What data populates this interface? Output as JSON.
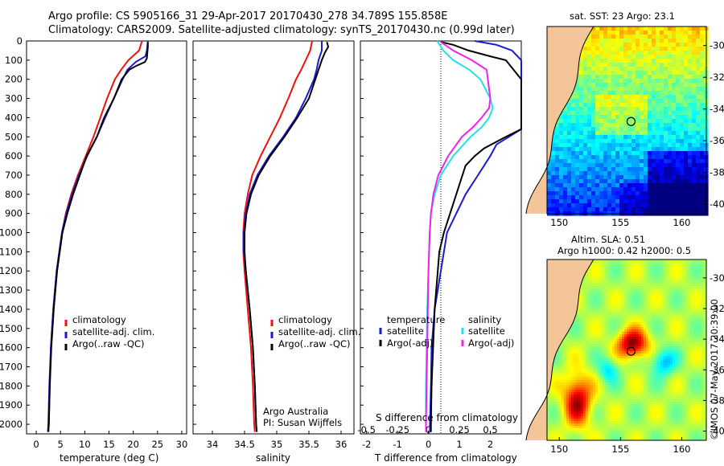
{
  "header": {
    "line1": "Argo profile: CS 5905166_31 29-Apr-2017 20170430_278 34.789S 155.858E",
    "line2": "Climatology: CARS2009. Satellite-adjusted climatology: synTS_20170430.nc (0.99d later)"
  },
  "colors": {
    "climatology": "#ee1111",
    "satellite": "#1a1ad0",
    "argo": "#000000",
    "sat_salinity": "#22e0e8",
    "argo_salinity": "#ee22ee",
    "land": "#f5c59a"
  },
  "chart_data": [
    {
      "type": "line",
      "name": "temperature",
      "xlabel": "temperature (deg C)",
      "ylabel": "",
      "xlim": [
        -2,
        31
      ],
      "ylim": [
        2050,
        0
      ],
      "xticks": [
        "0",
        "5",
        "10",
        "15",
        "20",
        "25",
        "30"
      ],
      "yticks": [
        "0",
        "100",
        "200",
        "300",
        "400",
        "500",
        "600",
        "700",
        "800",
        "900",
        "1000",
        "1100",
        "1200",
        "1300",
        "1400",
        "1500",
        "1600",
        "1700",
        "1800",
        "1900",
        "2000"
      ],
      "legend": [
        "climatology",
        "satellite-adj. clim.",
        "Argo(..raw -QC)"
      ],
      "series": [
        {
          "name": "climatology",
          "depth": [
            0,
            50,
            100,
            150,
            200,
            300,
            400,
            500,
            600,
            700,
            800,
            900,
            1000,
            1200,
            1400,
            1600,
            1800,
            2000,
            2040
          ],
          "values": [
            21.8,
            21.2,
            19,
            17.5,
            16.2,
            14.6,
            13.2,
            11.8,
            10.2,
            8.6,
            7.2,
            6.1,
            5.3,
            4.2,
            3.5,
            3.0,
            2.8,
            2.6,
            2.5
          ]
        },
        {
          "name": "satellite-adj. clim.",
          "depth": [
            0,
            50,
            80,
            110,
            150,
            200,
            300,
            400,
            500,
            600,
            700,
            800,
            900,
            1000,
            1200,
            1400,
            1600,
            1800,
            2000,
            2040
          ],
          "values": [
            23,
            22.8,
            22.5,
            20.5,
            18.8,
            17.8,
            16.0,
            14.2,
            12.5,
            10.5,
            8.8,
            7.4,
            6.2,
            5.3,
            4.2,
            3.5,
            3.0,
            2.7,
            2.5,
            2.4
          ]
        },
        {
          "name": "Argo(..raw -QC)",
          "depth": [
            5,
            30,
            60,
            90,
            110,
            130,
            150,
            200,
            250,
            300,
            400,
            500,
            600,
            700,
            800,
            900,
            1000,
            1200,
            1400,
            1600,
            1800,
            2000,
            2040
          ],
          "values": [
            23.0,
            23.0,
            22.9,
            22.8,
            22.4,
            20.6,
            19.2,
            17.6,
            16.8,
            16.0,
            14.0,
            12.5,
            10.4,
            9.0,
            7.6,
            6.4,
            5.4,
            4.3,
            3.6,
            3.1,
            2.8,
            2.6,
            2.5
          ]
        }
      ]
    },
    {
      "type": "line",
      "name": "salinity",
      "xlabel": "salinity",
      "xlim": [
        33.7,
        36.2
      ],
      "ylim": [
        2050,
        0
      ],
      "xticks": [
        "34",
        "34.5",
        "35",
        "35.5",
        "36"
      ],
      "legend": [
        "climatology",
        "satellite-adj. clim.",
        "Argo(..raw -QC)"
      ],
      "series": [
        {
          "name": "climatology",
          "depth": [
            0,
            50,
            100,
            150,
            200,
            300,
            400,
            500,
            600,
            700,
            800,
            900,
            1000,
            1100,
            1200,
            1400,
            1600,
            1800,
            2000,
            2040
          ],
          "values": [
            35.55,
            35.52,
            35.45,
            35.38,
            35.3,
            35.18,
            35.05,
            34.9,
            34.75,
            34.62,
            34.55,
            34.5,
            34.48,
            34.48,
            34.5,
            34.55,
            34.6,
            34.63,
            34.65,
            34.66
          ]
        },
        {
          "name": "satellite-adj. clim.",
          "depth": [
            0,
            50,
            100,
            150,
            200,
            300,
            400,
            500,
            600,
            700,
            800,
            900,
            1000,
            1100,
            1200,
            1400,
            1600,
            1800,
            2000,
            2040
          ],
          "values": [
            35.7,
            35.7,
            35.65,
            35.62,
            35.58,
            35.45,
            35.3,
            35.1,
            34.88,
            34.7,
            34.58,
            34.52,
            34.49,
            34.49,
            34.52,
            34.58,
            34.63,
            34.66,
            34.68,
            34.69
          ]
        },
        {
          "name": "Argo(..raw -QC)",
          "depth": [
            5,
            30,
            60,
            100,
            150,
            200,
            300,
            400,
            500,
            600,
            700,
            800,
            900,
            1000,
            1100,
            1200,
            1400,
            1600,
            1800,
            2000,
            2040
          ],
          "values": [
            35.78,
            35.8,
            35.75,
            35.7,
            35.65,
            35.6,
            35.5,
            35.32,
            35.12,
            34.9,
            34.72,
            34.6,
            34.53,
            34.5,
            34.5,
            34.52,
            34.58,
            34.63,
            34.66,
            34.68,
            34.69
          ]
        }
      ],
      "notes": [
        "Argo Australia",
        "PI: Susan Wijffels"
      ]
    },
    {
      "type": "line",
      "name": "difference from climatology",
      "xlabel": "T difference from climatology",
      "xlabel_top": "S difference from climatology",
      "xlim": [
        -2.2,
        3.0
      ],
      "ylim": [
        2050,
        0
      ],
      "xticks": [
        "-2",
        "-1",
        "0",
        "1",
        "2"
      ],
      "xticks_S": [
        "-0.5",
        "-0.25",
        "0",
        "0.25",
        "0.5"
      ],
      "legend_groups": [
        {
          "title": "temperature",
          "items": [
            "satellite",
            "Argo(-adj)"
          ]
        },
        {
          "title": "salinity",
          "items": [
            "satellite",
            "Argo(-adj)"
          ]
        }
      ],
      "series": [
        {
          "name": "T satellite",
          "depth": [
            0,
            20,
            50,
            100,
            200,
            300,
            400,
            460,
            500,
            540,
            600,
            700,
            800,
            900,
            1000,
            1200,
            1400,
            1600,
            1800,
            2000,
            2040
          ],
          "values": [
            1.5,
            2.2,
            2.7,
            3.0,
            3.0,
            3.0,
            3.0,
            3.0,
            2.6,
            2.2,
            2.0,
            1.6,
            1.2,
            0.9,
            0.6,
            0.4,
            0.2,
            0.1,
            0.08,
            0.05,
            0.05
          ]
        },
        {
          "name": "T Argo(-adj)",
          "depth": [
            5,
            20,
            50,
            80,
            100,
            200,
            300,
            400,
            460,
            500,
            560,
            600,
            650,
            700,
            800,
            900,
            1000,
            1100,
            1200,
            1400,
            1600,
            1800,
            2000,
            2040
          ],
          "values": [
            0.4,
            0.8,
            1.3,
            2.0,
            2.5,
            3.0,
            3.0,
            3.0,
            3.0,
            2.5,
            1.8,
            1.5,
            1.2,
            1.1,
            0.9,
            0.7,
            0.5,
            0.35,
            0.3,
            0.2,
            0.15,
            0.1,
            0.08,
            0.08
          ]
        },
        {
          "name": "S satellite",
          "depth": [
            0,
            50,
            100,
            150,
            200,
            300,
            350,
            400,
            450,
            500,
            600,
            700,
            800,
            900,
            1000,
            1200,
            1400,
            1600,
            1800,
            2000,
            2040
          ],
          "values": [
            0.07,
            0.12,
            0.2,
            0.33,
            0.42,
            0.5,
            0.52,
            0.49,
            0.43,
            0.34,
            0.2,
            0.1,
            0.05,
            0.02,
            0.01,
            0.0,
            -0.01,
            -0.015,
            -0.02,
            -0.02,
            -0.02
          ]
        },
        {
          "name": "S Argo(-adj)",
          "depth": [
            5,
            50,
            100,
            150,
            200,
            300,
            350,
            400,
            450,
            500,
            600,
            700,
            800,
            900,
            1000,
            1200,
            1400,
            1600,
            1800,
            2000,
            2040
          ],
          "values": [
            0.1,
            0.2,
            0.35,
            0.47,
            0.48,
            0.5,
            0.49,
            0.43,
            0.36,
            0.27,
            0.16,
            0.08,
            0.04,
            0.02,
            0.01,
            0.0,
            -0.005,
            -0.01,
            -0.015,
            -0.02,
            -0.02
          ]
        }
      ]
    },
    {
      "type": "heatmap",
      "name": "sat SST map",
      "title": "sat. SST: 23 Argo: 23.1",
      "xticks": [
        "150",
        "155",
        "160"
      ],
      "yticks": [
        "-30",
        "-32",
        "-34",
        "-36",
        "-38",
        "-40"
      ],
      "xlim": [
        149,
        162
      ],
      "ylim": [
        -40.6,
        -28.8
      ],
      "marker": {
        "lon": 155.858,
        "lat": -34.789
      }
    },
    {
      "type": "heatmap",
      "name": "altimetry SLA map",
      "title": "Altim. SLA: 0.51",
      "subtitle": "Argo h1000: 0.42 h2000: 0.5",
      "xticks": [
        "150",
        "155",
        "160"
      ],
      "yticks": [
        "-30",
        "-32",
        "-34",
        "-36",
        "-38",
        "-40"
      ],
      "xlim": [
        149,
        162
      ],
      "ylim": [
        -40.6,
        -28.8
      ],
      "marker": {
        "lon": 155.858,
        "lat": -34.789
      }
    }
  ],
  "side_label": "©IMOS 07-May-2017 20:39:00"
}
